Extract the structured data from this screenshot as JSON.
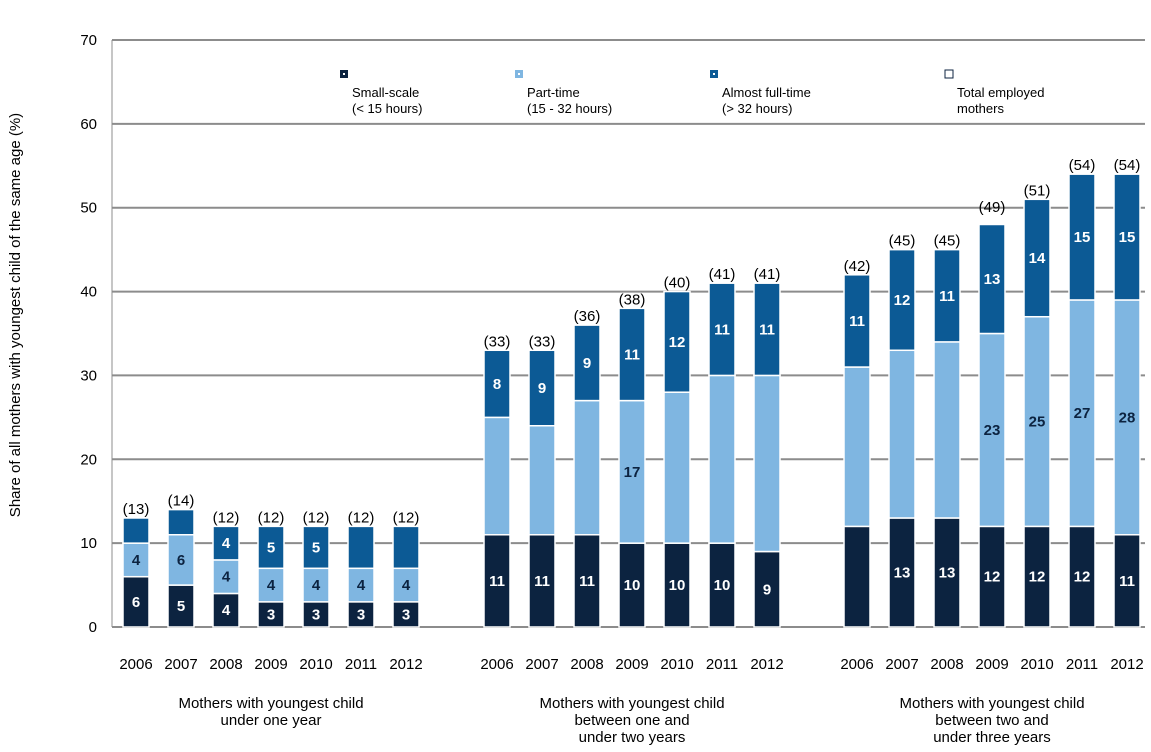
{
  "chart_data": {
    "type": "bar",
    "stacked": true,
    "ylabel": "Share of all mothers with youngest child of the same age (%)",
    "ylim": [
      0,
      70
    ],
    "yticks": [
      0,
      10,
      20,
      30,
      40,
      50,
      60,
      70
    ],
    "grid": true,
    "legend_position": "top",
    "colors": {
      "small": "#0c2340",
      "part": "#7fb6e1",
      "full": "#0c5a95",
      "total_marker": "#ffffff"
    },
    "legend": [
      {
        "key": "small",
        "line1": "Small-scale",
        "line2": "(< 15 hours)"
      },
      {
        "key": "part",
        "line1": "Part-time",
        "line2": "(15 - 32 hours)"
      },
      {
        "key": "full",
        "line1": "Almost full-time",
        "line2": "(> 32 hours)"
      },
      {
        "key": "total",
        "line1": "Total employed",
        "line2": "mothers"
      }
    ],
    "groups": [
      {
        "label_lines": [
          "Mothers with youngest child",
          "under one year"
        ],
        "years": [
          "2006",
          "2007",
          "2008",
          "2009",
          "2010",
          "2011",
          "2012"
        ],
        "small": [
          6,
          5,
          4,
          3,
          3,
          3,
          3
        ],
        "part": [
          4,
          6,
          4,
          4,
          4,
          4,
          4
        ],
        "full": [
          3,
          3,
          4,
          5,
          5,
          5,
          5
        ],
        "total": [
          13,
          14,
          12,
          12,
          12,
          12,
          12
        ],
        "small_labels": [
          "6",
          "5",
          "4",
          "3",
          "3",
          "3",
          "3"
        ],
        "part_labels": [
          "4",
          "6",
          "4",
          "4",
          "4",
          "4",
          "4"
        ],
        "full_labels": [
          "",
          "",
          "4",
          "5",
          "5",
          "",
          ""
        ],
        "total_labels": [
          "(13)",
          "(14)",
          "(12)",
          "(12)",
          "(12)",
          "(12)",
          "(12)"
        ]
      },
      {
        "label_lines": [
          "Mothers with youngest child",
          "between one and",
          "under two years"
        ],
        "years": [
          "2006",
          "2007",
          "2008",
          "2009",
          "2010",
          "2011",
          "2012"
        ],
        "small": [
          11,
          11,
          11,
          10,
          10,
          10,
          9
        ],
        "part": [
          14,
          13,
          16,
          17,
          18,
          20,
          21
        ],
        "full": [
          8,
          9,
          9,
          11,
          12,
          11,
          11
        ],
        "total": [
          33,
          33,
          36,
          38,
          40,
          41,
          41
        ],
        "small_labels": [
          "11",
          "11",
          "11",
          "10",
          "10",
          "10",
          "9"
        ],
        "part_labels": [
          "",
          "",
          "",
          "17",
          "",
          "",
          ""
        ],
        "full_labels": [
          "8",
          "9",
          "9",
          "11",
          "12",
          "11",
          "11"
        ],
        "total_labels": [
          "(33)",
          "(33)",
          "(36)",
          "(38)",
          "(40)",
          "(41)",
          "(41)"
        ]
      },
      {
        "label_lines": [
          "Mothers with youngest child",
          "between two and",
          "under three years"
        ],
        "years": [
          "2006",
          "2007",
          "2008",
          "2009",
          "2010",
          "2011",
          "2012"
        ],
        "small": [
          12,
          13,
          13,
          12,
          12,
          12,
          11
        ],
        "part": [
          19,
          20,
          21,
          23,
          25,
          27,
          28
        ],
        "full": [
          11,
          12,
          11,
          13,
          14,
          15,
          15
        ],
        "total": [
          42,
          45,
          45,
          49,
          51,
          54,
          54
        ],
        "small_labels": [
          "",
          "13",
          "13",
          "12",
          "12",
          "12",
          "11"
        ],
        "part_labels": [
          "",
          "",
          "",
          "23",
          "25",
          "27",
          "28"
        ],
        "full_labels": [
          "11",
          "12",
          "11",
          "13",
          "14",
          "15",
          "15"
        ],
        "total_labels": [
          "(42)",
          "(45)",
          "(45)",
          "(49)",
          "(51)",
          "(54)",
          "(54)"
        ]
      }
    ]
  }
}
